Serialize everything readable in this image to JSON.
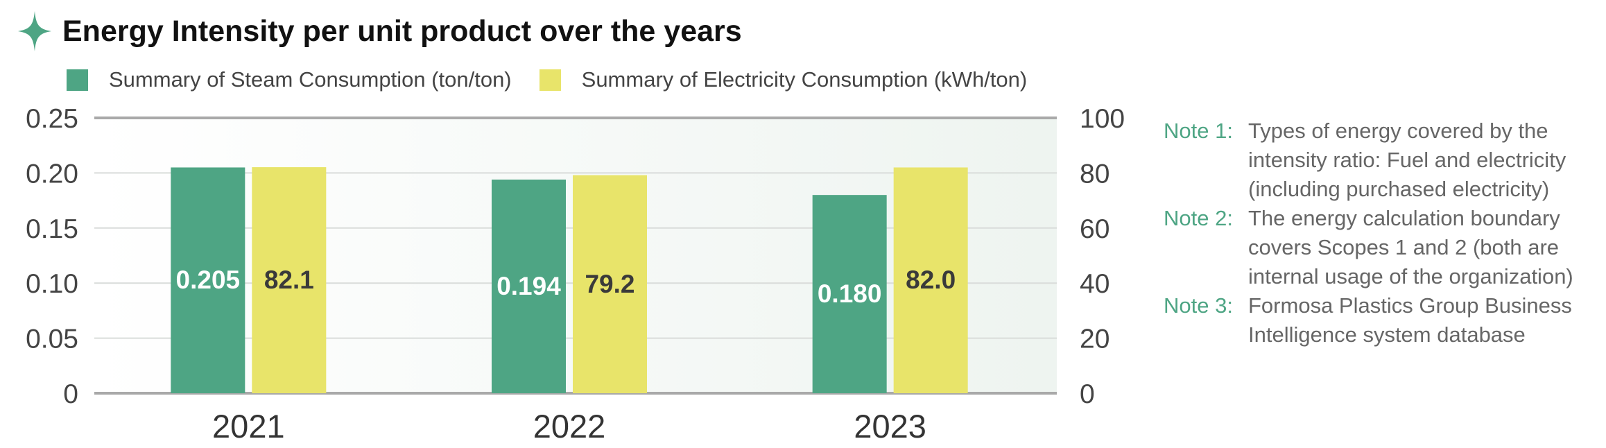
{
  "chart_data": {
    "type": "bar",
    "title": "Energy Intensity per unit product over the years",
    "categories": [
      "2021",
      "2022",
      "2023"
    ],
    "series": [
      {
        "name": "Summary of Steam Consumption (ton/ton)",
        "axis": "left",
        "values": [
          0.205,
          0.194,
          0.18
        ],
        "labels": [
          "0.205",
          "0.194",
          "0.180"
        ],
        "color": "#4ea584"
      },
      {
        "name": "Summary of Electricity Consumption (kWh/ton)",
        "axis": "right",
        "values": [
          82.1,
          79.2,
          82.0
        ],
        "labels": [
          "82.1",
          "79.2",
          "82.0"
        ],
        "color": "#e8e46a"
      }
    ],
    "y_left": {
      "ylim": [
        0,
        0.25
      ],
      "ticks": [
        "0",
        "0.05",
        "0.10",
        "0.15",
        "0.20",
        "0.25"
      ]
    },
    "y_right": {
      "ylim": [
        0,
        100
      ],
      "ticks": [
        "0",
        "20",
        "40",
        "60",
        "80",
        "100"
      ]
    },
    "grid": true,
    "legend_position": "top"
  },
  "notes": [
    {
      "label": "Note 1:",
      "text": "Types of energy covered by the intensity ratio: Fuel and electricity (including purchased electricity)"
    },
    {
      "label": "Note 2:",
      "text": "The energy calculation boundary covers Scopes 1 and 2 (both are internal usage of the organization)"
    },
    {
      "label": "Note 3:",
      "text": "Formosa Plastics Group Business Intelligence system database"
    }
  ],
  "colors": {
    "accent": "#4ea584",
    "steam": "#4ea584",
    "electricity": "#e8e46a"
  },
  "icons": {
    "title_icon": "four-point-star-icon"
  }
}
